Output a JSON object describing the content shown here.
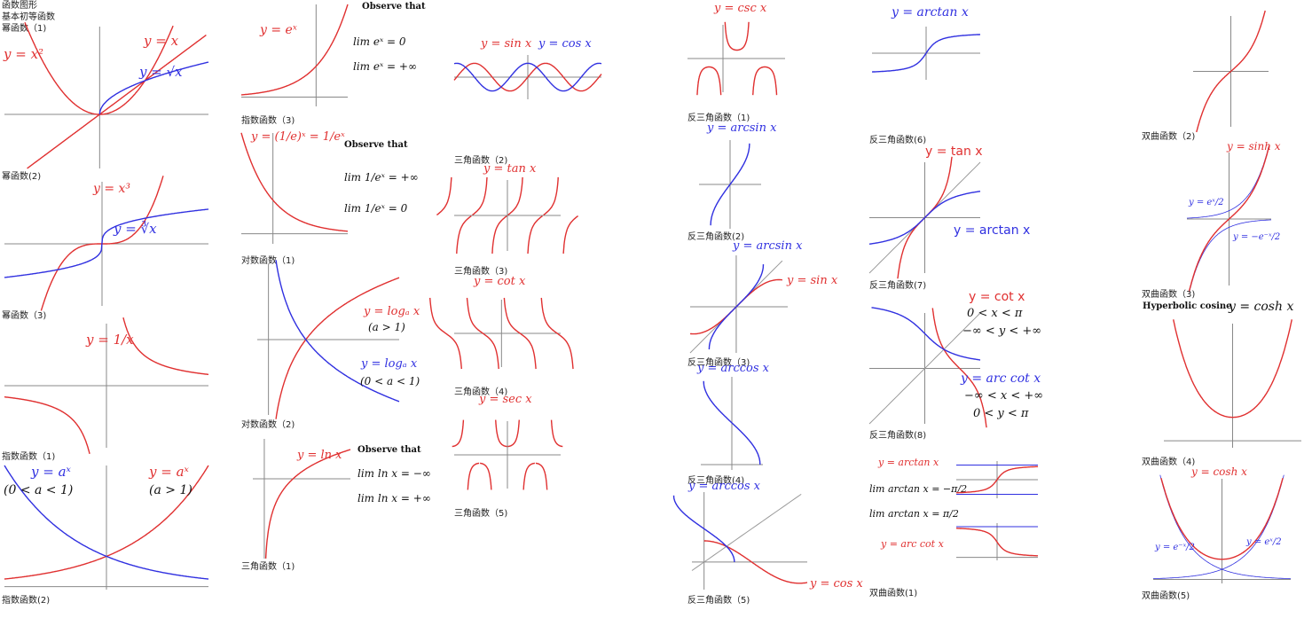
{
  "header": {
    "lines": [
      "函数图形",
      "基本初等函数",
      "幂函数（1)"
    ]
  },
  "captions": [
    "幂函数(2)",
    "幂函数（3)",
    "指数函数（1)",
    "指数函数(2)",
    "指数函数（3)",
    "对数函数（1)",
    "对数函数（2)",
    "三角函数（1)",
    "三角函数（2)",
    "三角函数（3)",
    "三角函数（4)",
    "三角函数（5)",
    "反三角函数（1)",
    "反三角函数(2)",
    "反三角函数（3)",
    "反三角函数(4)",
    "反三角函数（5)",
    "反三角函数(6)",
    "反三角函数(7)",
    "反三角函数(8)",
    "双曲函数(1)",
    "双曲函数（2)",
    "双曲函数（3)",
    "双曲函数（4)",
    "双曲函数(5)"
  ],
  "labels": {
    "y_x2": "y = x²",
    "y_x": "y = x",
    "y_sqrt": "y = √x",
    "y_x3": "y = x³",
    "y_cbrt": "y = ∛x",
    "y_inv": "y = 1/x",
    "y_ax_lt": "y = aˣ",
    "cond_lt": "(0 < a < 1)",
    "y_ax_gt": "y = aˣ",
    "cond_gt": "(a > 1)",
    "y_ex": "y = eˣ",
    "observe1": "Observe that",
    "lim_ex_1": "lim eˣ = 0",
    "lim_ex_2": "lim eˣ = +∞",
    "y_inv_e": "y = (1/e)ˣ = 1/eˣ",
    "observe2": "Observe that",
    "lim_inv_1": "lim 1/eˣ = +∞",
    "lim_inv_2": "lim 1/eˣ = 0",
    "y_loga_gt": "y = logₐ x",
    "cond_log_gt": "(a > 1)",
    "y_loga_lt": "y = logₐ x",
    "cond_log_lt": "(0 < a < 1)",
    "y_ln": "y = ln x",
    "observe3": "Observe that",
    "lim_ln_1": "lim ln x = −∞",
    "lim_ln_2": "lim ln x = +∞",
    "y_sin": "y = sin x",
    "y_cos": "y = cos x",
    "y_tan": "y = tan x",
    "y_cot": "y = cot x",
    "y_sec": "y = sec x",
    "y_csc": "y = csc x",
    "y_arcsin": "y = arcsin x",
    "y_arcsin2": "y = arcsin x",
    "y_sin2": "y = sin x",
    "y_arccos": "y = arccos x",
    "y_arccos2": "y = arccos x",
    "y_cos2": "y = cos x",
    "y_arctan": "y = arctan x",
    "y_tan2": "y = tan x",
    "y_arctan2": "y = arctan x",
    "y_cot2": "y = cot x",
    "cot_dom": "0 < x < π",
    "cot_rng": "−∞ < y < +∞",
    "y_arccot": "y = arc cot x",
    "arccot_dom": "−∞ < x < +∞",
    "arccot_rng": "0 < y < π",
    "y_arctan3": "y = arctan x",
    "lim_atan_1": "lim arctan x = −π/2",
    "lim_atan_2": "lim arctan x = π/2",
    "y_arccot3": "y = arc cot x",
    "y_sinh": "y = sinh x",
    "sinh_p": "y = eˣ/2",
    "sinh_m": "y = −e⁻ˣ/2",
    "hyp_cos": "Hyperbolic cosine",
    "y_cosh": "y = cosh x",
    "y_cosh2": "y = cosh x",
    "cosh_m": "y = e⁻ˣ/2",
    "cosh_p": "y = eˣ/2"
  },
  "colors": {
    "red": "#e03030",
    "blue": "#3030e0",
    "axis": "#888888",
    "guide": "#999999"
  }
}
